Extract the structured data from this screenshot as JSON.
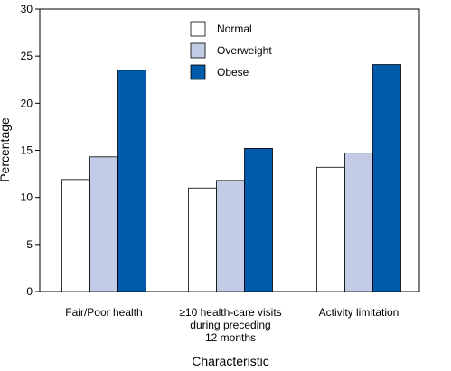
{
  "chart_data": {
    "type": "bar",
    "title": "",
    "xlabel": "Characteristic",
    "ylabel": "Percentage",
    "ylim": [
      0,
      30
    ],
    "yticks": [
      0,
      5,
      10,
      15,
      20,
      25,
      30
    ],
    "categories": [
      [
        "Fair/Poor health"
      ],
      [
        "≥10 health-care visits",
        "during preceding",
        "12 months"
      ],
      [
        "Activity limitation"
      ]
    ],
    "series": [
      {
        "name": "Normal",
        "color": "#ffffff",
        "values": [
          11.9,
          11.0,
          13.2
        ]
      },
      {
        "name": "Overweight",
        "color": "#c3cce6",
        "values": [
          14.3,
          11.8,
          14.7
        ]
      },
      {
        "name": "Obese",
        "color": "#005bab",
        "values": [
          23.5,
          15.2,
          24.1
        ]
      }
    ],
    "grid": false,
    "legend_position": "top-center"
  }
}
